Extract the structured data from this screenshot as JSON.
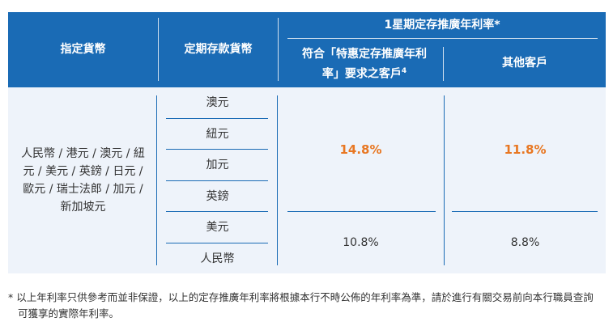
{
  "header": {
    "col_specified_currency": "指定貨幣",
    "col_deposit_currency": "定期存款貨幣",
    "col_rate_group": "1星期定存推廣年利率*",
    "col_qualified": "符合「特惠定存推廣年利率」要求之客戶",
    "col_qualified_sup": "4",
    "col_other": "其他客戶"
  },
  "body": {
    "specified_currencies": "人民幣 / 港元 / 澳元 / 紐元 / 美元 / 英鎊 / 日元 / 歐元 / 瑞士法郎 / 加元 / 新加坡元",
    "deposit_currencies": [
      "澳元",
      "紐元",
      "加元",
      "英鎊",
      "美元",
      "人民幣"
    ],
    "rate_qualified_high": "14.8%",
    "rate_other_high": "11.8%",
    "rate_qualified_low": "10.8%",
    "rate_other_low": "8.8%"
  },
  "footnote": "* 以上年利率只供參考而並非保證，以上的定存推廣年利率將根據本行不時公佈的年利率為準，請於進行有關交易前向本行職員查詢可獲享的實際年利率。",
  "colors": {
    "header_bg": "#1a6bb5",
    "body_bg": "#eef3fa",
    "highlight": "#e87722"
  }
}
